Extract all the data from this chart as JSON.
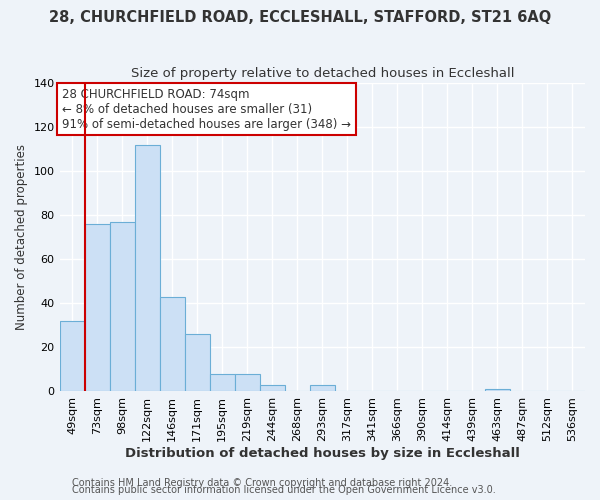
{
  "title1": "28, CHURCHFIELD ROAD, ECCLESHALL, STAFFORD, ST21 6AQ",
  "title2": "Size of property relative to detached houses in Eccleshall",
  "xlabel": "Distribution of detached houses by size in Eccleshall",
  "ylabel": "Number of detached properties",
  "bar_labels": [
    "49sqm",
    "73sqm",
    "98sqm",
    "122sqm",
    "146sqm",
    "171sqm",
    "195sqm",
    "219sqm",
    "244sqm",
    "268sqm",
    "293sqm",
    "317sqm",
    "341sqm",
    "366sqm",
    "390sqm",
    "414sqm",
    "439sqm",
    "463sqm",
    "487sqm",
    "512sqm",
    "536sqm"
  ],
  "bar_values": [
    32,
    76,
    77,
    112,
    43,
    26,
    8,
    8,
    3,
    0,
    3,
    0,
    0,
    0,
    0,
    0,
    0,
    1,
    0,
    0,
    0
  ],
  "bar_color": "#cce0f5",
  "bar_edgecolor": "#6baed6",
  "vline_x_idx": 1,
  "vline_color": "#cc0000",
  "annotation_title": "28 CHURCHFIELD ROAD: 74sqm",
  "annotation_line1": "← 8% of detached houses are smaller (31)",
  "annotation_line2": "91% of semi-detached houses are larger (348) →",
  "annotation_box_facecolor": "#ffffff",
  "annotation_box_edgecolor": "#cc0000",
  "ylim": [
    0,
    140
  ],
  "yticks": [
    0,
    20,
    40,
    60,
    80,
    100,
    120,
    140
  ],
  "footer1": "Contains HM Land Registry data © Crown copyright and database right 2024.",
  "footer2": "Contains public sector information licensed under the Open Government Licence v3.0.",
  "background_color": "#eef3f9",
  "plot_bg_color": "#eef3f9",
  "grid_color": "#ffffff",
  "title1_fontsize": 10.5,
  "title2_fontsize": 9.5,
  "xlabel_fontsize": 9.5,
  "ylabel_fontsize": 8.5,
  "tick_fontsize": 8,
  "annotation_fontsize": 8.5,
  "footer_fontsize": 7
}
